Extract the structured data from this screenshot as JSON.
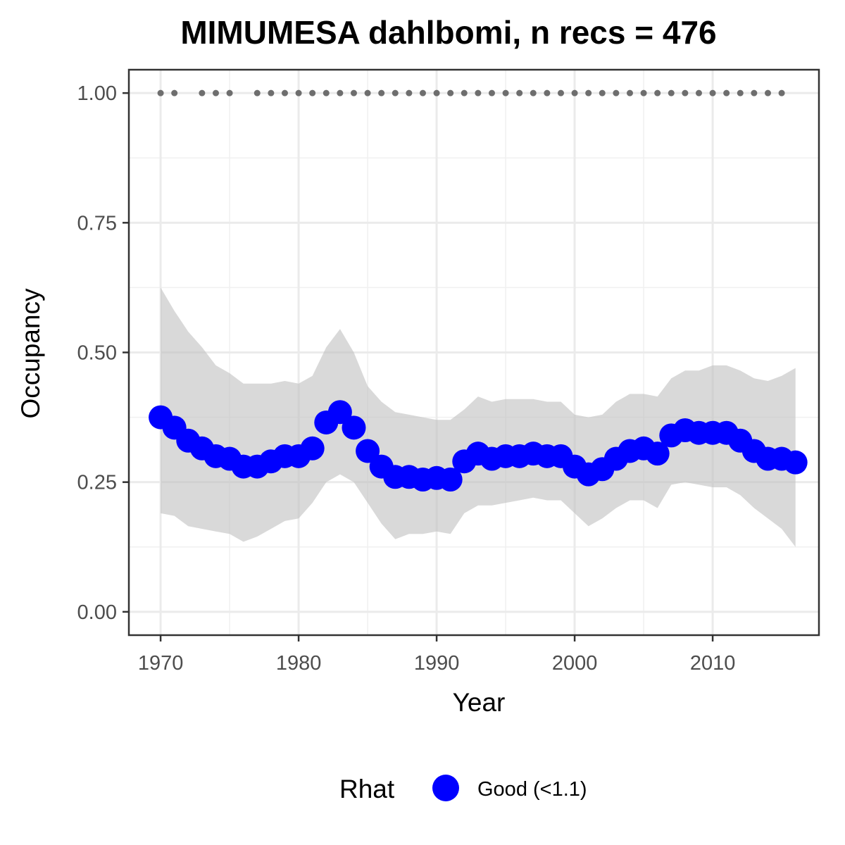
{
  "chart_data": {
    "type": "line",
    "title": "MIMUMESA dahlbomi, n recs = 476",
    "xlabel": "Year",
    "ylabel": "Occupancy",
    "xlim": [
      1967.7,
      2017.7
    ],
    "ylim": [
      -0.045,
      1.045
    ],
    "x_ticks": [
      1970,
      1980,
      1990,
      2000,
      2010
    ],
    "y_ticks": [
      0.0,
      0.25,
      0.5,
      0.75,
      1.0
    ],
    "y_tick_labels": [
      "0.00",
      "0.25",
      "0.50",
      "0.75",
      "1.00"
    ],
    "grid": true,
    "x": [
      1970,
      1971,
      1972,
      1973,
      1974,
      1975,
      1976,
      1977,
      1978,
      1979,
      1980,
      1981,
      1982,
      1983,
      1984,
      1985,
      1986,
      1987,
      1988,
      1989,
      1990,
      1991,
      1992,
      1993,
      1994,
      1995,
      1996,
      1997,
      1998,
      1999,
      2000,
      2001,
      2002,
      2003,
      2004,
      2005,
      2006,
      2007,
      2008,
      2009,
      2010,
      2011,
      2012,
      2013,
      2014,
      2015,
      2016
    ],
    "series": [
      {
        "name": "Good (<1.1)",
        "color": "#0000ff",
        "values": [
          0.375,
          0.355,
          0.33,
          0.315,
          0.3,
          0.295,
          0.28,
          0.28,
          0.29,
          0.3,
          0.3,
          0.315,
          0.365,
          0.385,
          0.355,
          0.31,
          0.28,
          0.26,
          0.26,
          0.255,
          0.258,
          0.255,
          0.29,
          0.305,
          0.295,
          0.3,
          0.3,
          0.305,
          0.3,
          0.3,
          0.28,
          0.265,
          0.275,
          0.295,
          0.31,
          0.315,
          0.305,
          0.34,
          0.35,
          0.345,
          0.345,
          0.345,
          0.33,
          0.31,
          0.295,
          0.295,
          0.288
        ]
      }
    ],
    "ribbon": {
      "color": "#bfbfbf",
      "lower": [
        0.19,
        0.185,
        0.165,
        0.16,
        0.155,
        0.15,
        0.135,
        0.145,
        0.16,
        0.175,
        0.18,
        0.21,
        0.25,
        0.265,
        0.25,
        0.21,
        0.17,
        0.14,
        0.15,
        0.15,
        0.155,
        0.15,
        0.19,
        0.205,
        0.205,
        0.21,
        0.215,
        0.22,
        0.215,
        0.215,
        0.19,
        0.165,
        0.18,
        0.2,
        0.215,
        0.215,
        0.2,
        0.245,
        0.25,
        0.245,
        0.24,
        0.24,
        0.225,
        0.2,
        0.18,
        0.16,
        0.125
      ],
      "upper": [
        0.625,
        0.58,
        0.54,
        0.51,
        0.475,
        0.46,
        0.44,
        0.44,
        0.44,
        0.445,
        0.44,
        0.455,
        0.51,
        0.545,
        0.5,
        0.435,
        0.405,
        0.385,
        0.38,
        0.375,
        0.37,
        0.37,
        0.39,
        0.415,
        0.405,
        0.41,
        0.41,
        0.41,
        0.405,
        0.405,
        0.38,
        0.375,
        0.38,
        0.405,
        0.42,
        0.42,
        0.415,
        0.45,
        0.465,
        0.465,
        0.475,
        0.475,
        0.465,
        0.45,
        0.445,
        0.455,
        0.47
      ]
    },
    "records": {
      "color": "#6e6e6e",
      "y": 1.0,
      "x": [
        1970,
        1971,
        1973,
        1974,
        1975,
        1977,
        1978,
        1979,
        1980,
        1981,
        1982,
        1983,
        1984,
        1985,
        1986,
        1987,
        1988,
        1989,
        1990,
        1991,
        1992,
        1993,
        1994,
        1995,
        1996,
        1997,
        1998,
        1999,
        2000,
        2001,
        2002,
        2003,
        2004,
        2005,
        2006,
        2007,
        2008,
        2009,
        2010,
        2011,
        2012,
        2013,
        2014,
        2015
      ]
    },
    "legend": {
      "title": "Rhat",
      "position": "bottom",
      "items": [
        {
          "label": "Good (<1.1)",
          "color": "#0000ff"
        }
      ]
    }
  }
}
